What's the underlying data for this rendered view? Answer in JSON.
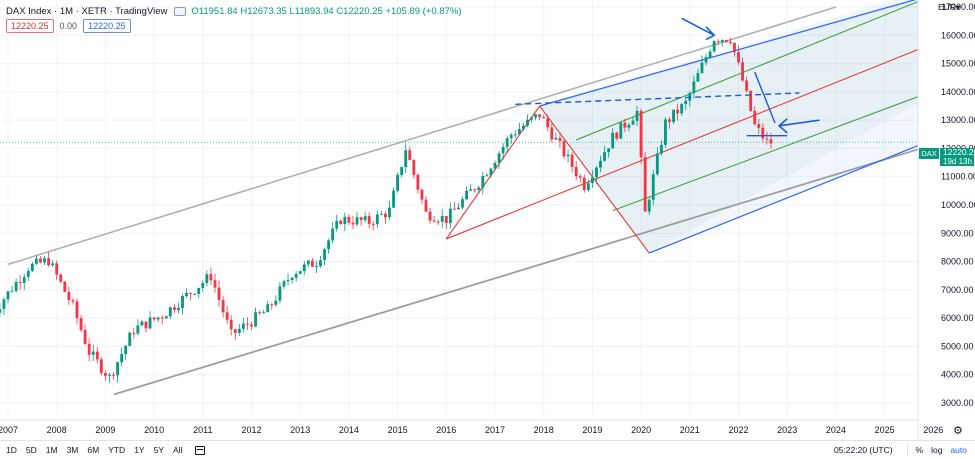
{
  "header": {
    "title": "DAX Index · 1M · XETR · TradingView",
    "ohlc_open": "O11951.84",
    "ohlc_high": "H12673.35",
    "ohlc_low": "L11893.94",
    "ohlc_close": "C12220.25",
    "ohlc_change": "+105.89 (+0.87%)"
  },
  "indicator": {
    "value_red": "12220.25",
    "value_zero": "0.00",
    "value_blue": "12220.25"
  },
  "price_scale": {
    "currency": "EUR",
    "last_price": "12220.25",
    "countdown": "19d 13h",
    "symbol_badge": "DAX",
    "labels": [
      "17000.00",
      "16000.00",
      "15000.00",
      "14000.00",
      "13000.00",
      "12000.00",
      "11000.00",
      "10000.00",
      "9000.00",
      "8000.00",
      "7000.00",
      "6000.00",
      "5000.00",
      "4000.00",
      "3000.00"
    ]
  },
  "time_scale": {
    "labels": [
      "2007",
      "2008",
      "2009",
      "2010",
      "2011",
      "2012",
      "2013",
      "2014",
      "2015",
      "2016",
      "2017",
      "2018",
      "2019",
      "2020",
      "2021",
      "2022",
      "2023",
      "2024",
      "2025",
      "2026"
    ]
  },
  "bottom_bar": {
    "timeframes": [
      "1D",
      "5D",
      "1M",
      "3M",
      "6M",
      "YTD",
      "1Y",
      "5Y",
      "All"
    ],
    "clock": "05:22:20 (UTC)",
    "percent_label": "%",
    "log_label": "log",
    "auto_label": "auto"
  },
  "colors": {
    "up": "#089981",
    "down": "#f23645",
    "pitchfork_red": "#e53935",
    "pitchfork_green": "#43a047",
    "pitchfork_blue": "#2962ff",
    "trendline_gray": "#9e9e9e",
    "annotation_blue": "#1e5ad8"
  },
  "chart_data": {
    "type": "candlestick",
    "symbol": "DAX Index",
    "interval": "1M",
    "exchange": "XETR",
    "ylim": [
      3000,
      17000
    ],
    "x_range": [
      "2006-09",
      "2026-06"
    ],
    "points": [
      [
        "2006-09",
        5900
      ],
      [
        "2007-01",
        6700
      ],
      [
        "2007-07",
        7800
      ],
      [
        "2007-12",
        8050
      ],
      [
        "2008-06",
        6400
      ],
      [
        "2008-10",
        4800
      ],
      [
        "2009-03",
        3900
      ],
      [
        "2009-09",
        5600
      ],
      [
        "2010-04",
        6100
      ],
      [
        "2011-04",
        7500
      ],
      [
        "2011-09",
        5400
      ],
      [
        "2012-06",
        6300
      ],
      [
        "2012-12",
        7600
      ],
      [
        "2013-06",
        8000
      ],
      [
        "2013-12",
        9500
      ],
      [
        "2014-07",
        9400
      ],
      [
        "2014-12",
        9800
      ],
      [
        "2015-04",
        12000
      ],
      [
        "2015-09",
        9700
      ],
      [
        "2016-02",
        9500
      ],
      [
        "2016-10",
        10800
      ],
      [
        "2017-06",
        12500
      ],
      [
        "2018-01",
        13200
      ],
      [
        "2018-12",
        10700
      ],
      [
        "2019-07",
        12400
      ],
      [
        "2020-01",
        13300
      ],
      [
        "2020-03",
        9700
      ],
      [
        "2020-08",
        12900
      ],
      [
        "2021-01",
        13600
      ],
      [
        "2021-08",
        15900
      ],
      [
        "2021-12",
        15900
      ],
      [
        "2022-03",
        14400
      ],
      [
        "2022-06",
        12800
      ],
      [
        "2022-09",
        12220
      ]
    ]
  }
}
